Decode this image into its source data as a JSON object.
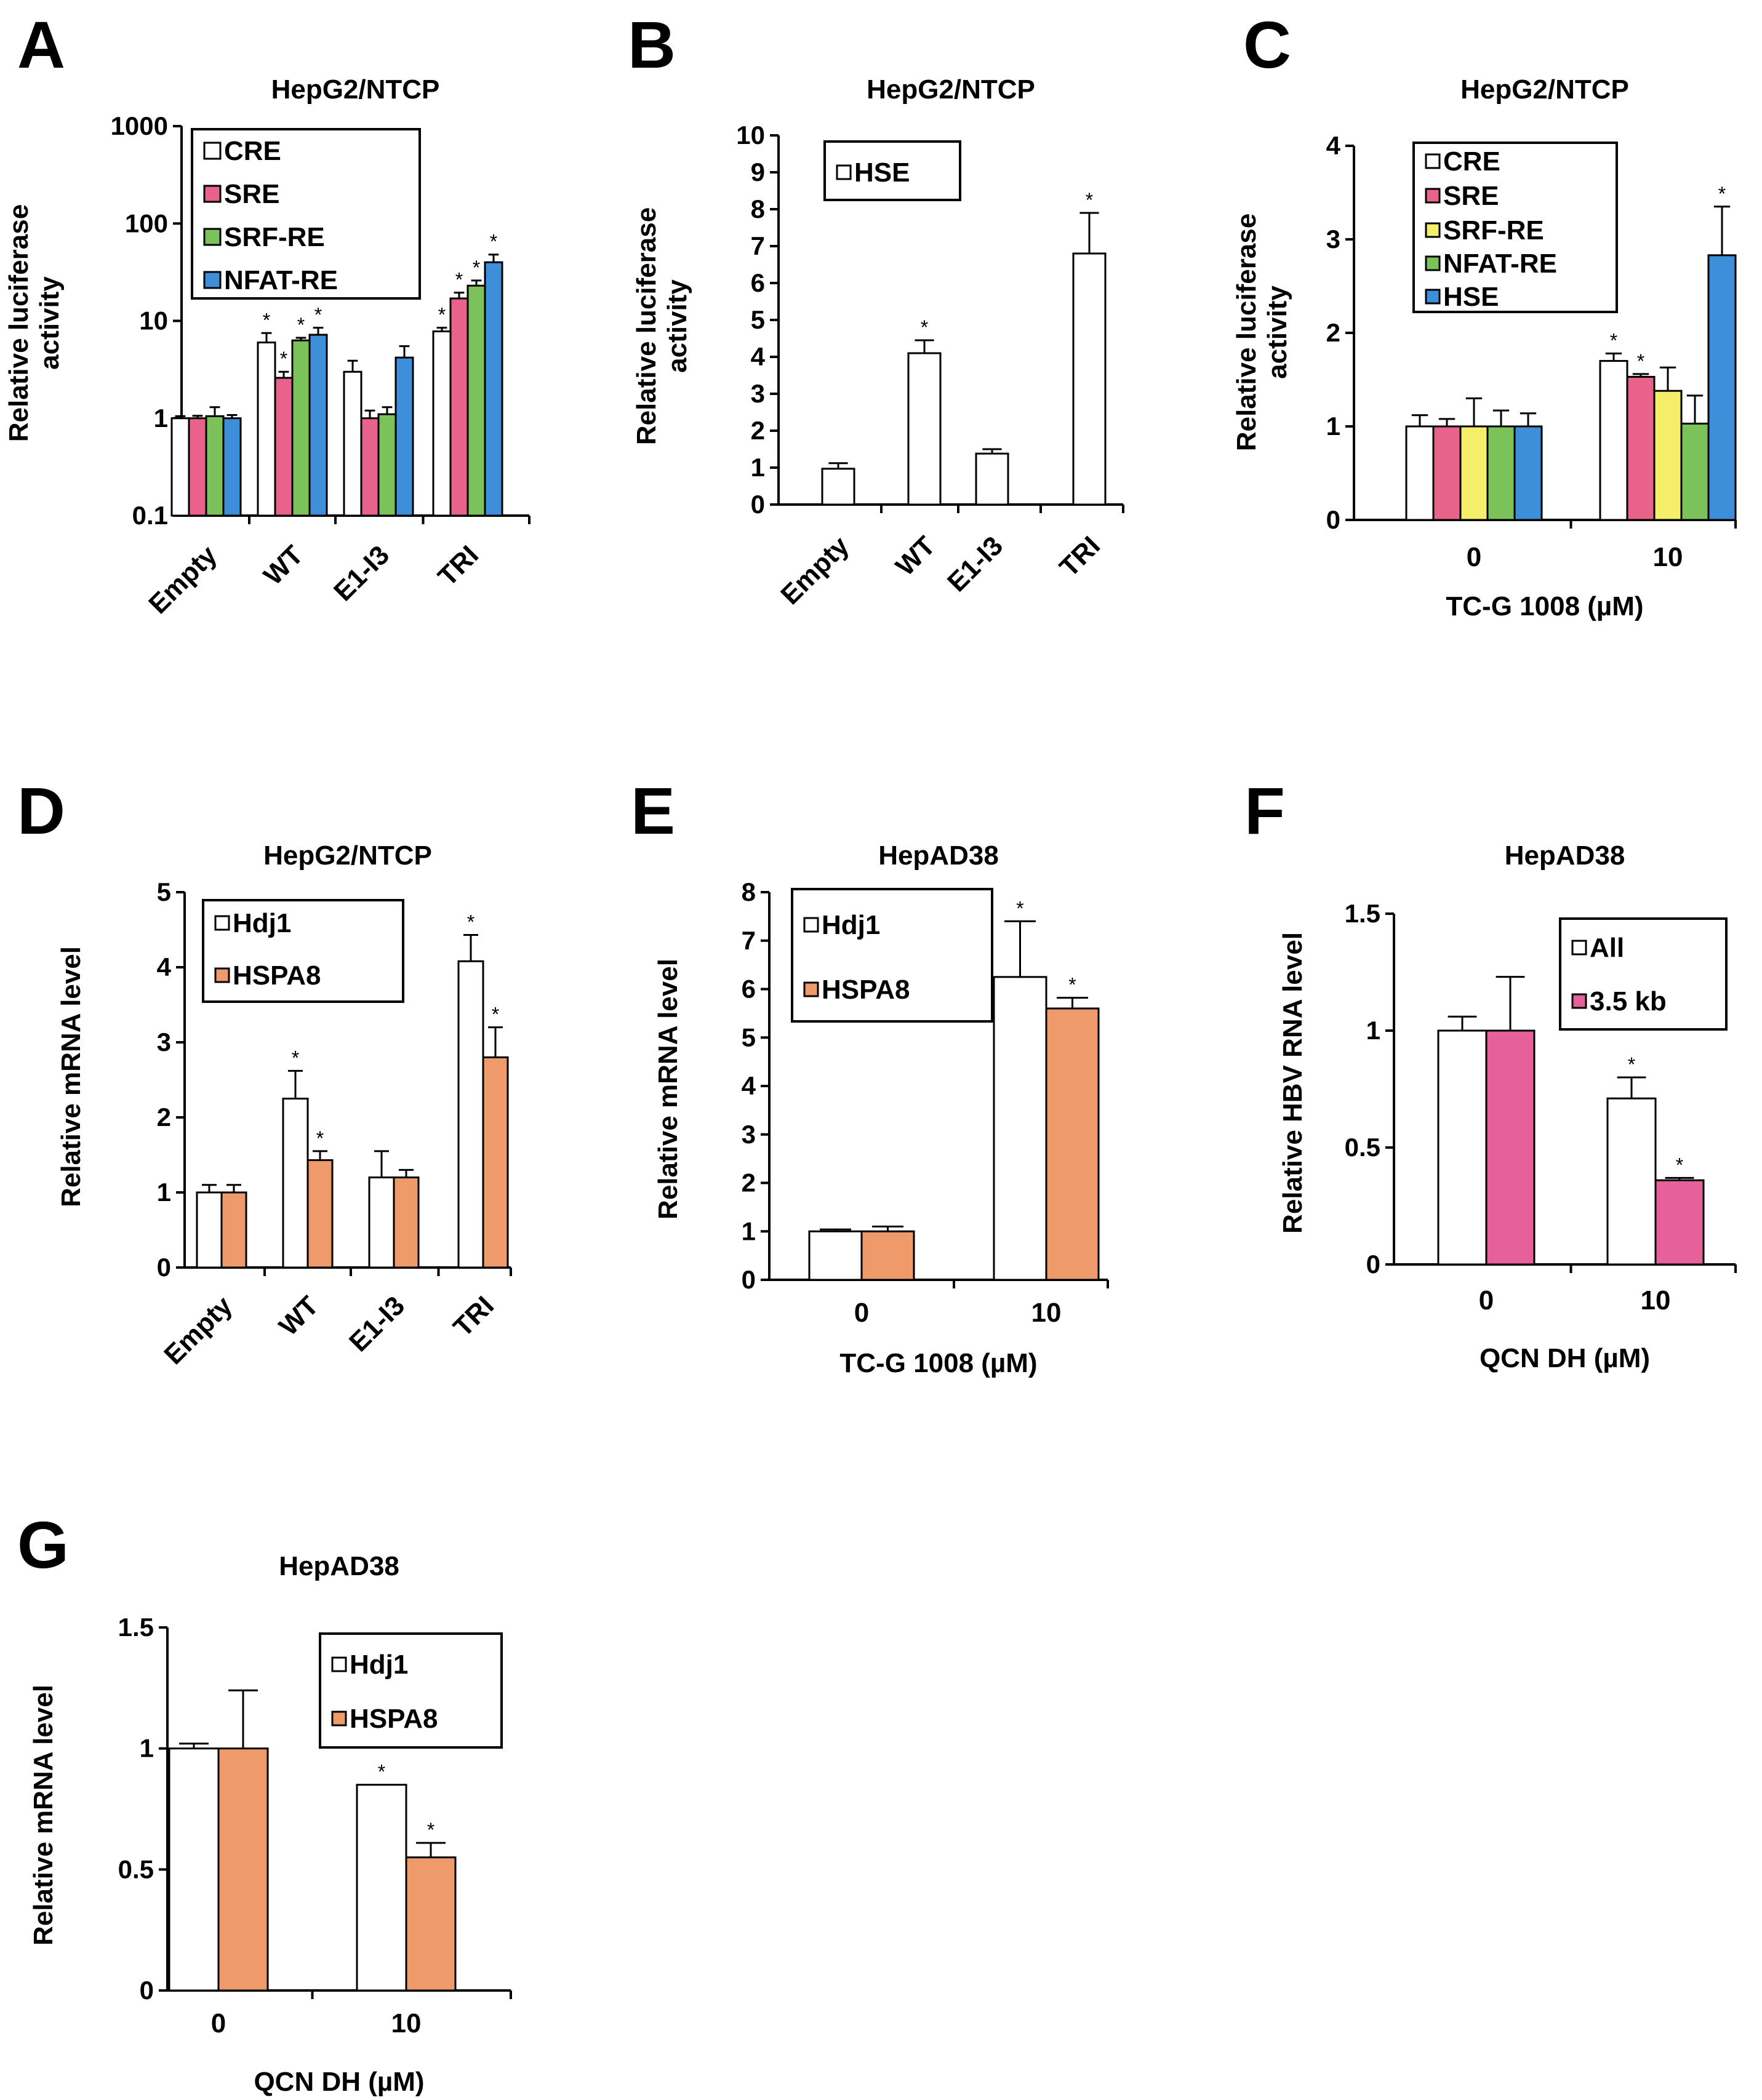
{
  "colors": {
    "white": "#ffffff",
    "pink": "#e8628c",
    "green": "#7bc25a",
    "blue": "#3c8fd8",
    "yellow": "#f4ee6a",
    "orange": "#ef9a6a",
    "pink2": "#e6609a"
  },
  "chart_data": [
    {
      "id": "A",
      "panel_label": "A",
      "type": "bar",
      "title": "HepG2/NTCP",
      "ylabel": [
        "Relative luciferase",
        "activity"
      ],
      "xlabel": "",
      "yscale": "log",
      "ylim": [
        0.1,
        1000
      ],
      "ytick_labels": [
        "0.1",
        "1",
        "10",
        "100",
        "1000"
      ],
      "categories": [
        "Empty",
        "WT",
        "E1-I3",
        "TRI"
      ],
      "rotate_x": true,
      "series": [
        {
          "name": "CRE",
          "color": "white",
          "values": [
            1,
            6,
            3,
            7.8
          ],
          "errors": [
            0.05,
            1.5,
            0.9,
            0.7
          ],
          "stars": [
            false,
            true,
            false,
            true
          ]
        },
        {
          "name": "SRE",
          "color": "pink",
          "values": [
            1,
            2.6,
            1,
            17
          ],
          "errors": [
            0.06,
            0.4,
            0.2,
            2.5
          ],
          "stars": [
            false,
            true,
            false,
            true
          ]
        },
        {
          "name": "SRF-RE",
          "color": "green",
          "values": [
            1.05,
            6.3,
            1.1,
            23
          ],
          "errors": [
            0.25,
            0.4,
            0.2,
            3
          ],
          "stars": [
            false,
            true,
            false,
            true
          ]
        },
        {
          "name": "NFAT-RE",
          "color": "blue",
          "values": [
            1,
            7.2,
            4.2,
            40
          ],
          "errors": [
            0.08,
            1.3,
            1.3,
            8
          ],
          "stars": [
            false,
            true,
            false,
            true
          ]
        }
      ]
    },
    {
      "id": "B",
      "panel_label": "B",
      "type": "bar",
      "title": "HepG2/NTCP",
      "ylabel": [
        "Relative luciferase",
        "activity"
      ],
      "xlabel": "",
      "yscale": "linear",
      "ylim": [
        0,
        10
      ],
      "ytick_labels": [
        "0",
        "1",
        "2",
        "3",
        "4",
        "5",
        "6",
        "7",
        "8",
        "9",
        "10"
      ],
      "categories": [
        "Empty",
        "WT",
        "E1-I3",
        "TRI"
      ],
      "rotate_x": true,
      "series": [
        {
          "name": "HSE",
          "color": "white",
          "values": [
            0.97,
            4.1,
            1.38,
            6.8
          ],
          "errors": [
            0.15,
            0.35,
            0.12,
            1.1
          ],
          "stars": [
            false,
            true,
            false,
            true
          ]
        }
      ]
    },
    {
      "id": "C",
      "panel_label": "C",
      "type": "bar",
      "title": "HepG2/NTCP",
      "ylabel": [
        "Relative luciferase",
        "activity"
      ],
      "xlabel": "TC-G 1008 (µM)",
      "yscale": "linear",
      "ylim": [
        0,
        4
      ],
      "ytick_labels": [
        "0",
        "1",
        "2",
        "3",
        "4"
      ],
      "categories": [
        "0",
        "10"
      ],
      "rotate_x": false,
      "series": [
        {
          "name": "CRE",
          "color": "white",
          "values": [
            1,
            1.7
          ],
          "errors": [
            0.12,
            0.08
          ],
          "stars": [
            false,
            true
          ]
        },
        {
          "name": "SRE",
          "color": "pink",
          "values": [
            1,
            1.53
          ],
          "errors": [
            0.08,
            0.03
          ],
          "stars": [
            false,
            true
          ]
        },
        {
          "name": "SRF-RE",
          "color": "yellow",
          "values": [
            1,
            1.38
          ],
          "errors": [
            0.3,
            0.25
          ],
          "stars": [
            false,
            false
          ]
        },
        {
          "name": "NFAT-RE",
          "color": "green",
          "values": [
            1,
            1.03
          ],
          "errors": [
            0.17,
            0.3
          ],
          "stars": [
            false,
            false
          ]
        },
        {
          "name": "HSE",
          "color": "blue",
          "values": [
            1,
            2.83
          ],
          "errors": [
            0.14,
            0.52
          ],
          "stars": [
            false,
            true
          ]
        }
      ]
    },
    {
      "id": "D",
      "panel_label": "D",
      "type": "bar",
      "title": "HepG2/NTCP",
      "ylabel": [
        "Relative mRNA level"
      ],
      "xlabel": "",
      "yscale": "linear",
      "ylim": [
        0,
        5
      ],
      "ytick_labels": [
        "0",
        "1",
        "2",
        "3",
        "4",
        "5"
      ],
      "categories": [
        "Empty",
        "WT",
        "E1-I3",
        "TRI"
      ],
      "rotate_x": true,
      "series": [
        {
          "name": "Hdj1",
          "color": "white",
          "values": [
            1,
            2.25,
            1.2,
            4.08
          ],
          "errors": [
            0.1,
            0.37,
            0.35,
            0.35
          ],
          "stars": [
            false,
            true,
            false,
            true
          ]
        },
        {
          "name": "HSPA8",
          "color": "orange",
          "values": [
            1,
            1.43,
            1.2,
            2.8
          ],
          "errors": [
            0.1,
            0.12,
            0.1,
            0.4
          ],
          "stars": [
            false,
            true,
            false,
            true
          ]
        }
      ]
    },
    {
      "id": "E",
      "panel_label": "E",
      "type": "bar",
      "title": "HepAD38",
      "ylabel": [
        "Relative mRNA level"
      ],
      "xlabel": "TC-G 1008 (µM)",
      "yscale": "linear",
      "ylim": [
        0,
        8
      ],
      "ytick_labels": [
        "0",
        "1",
        "2",
        "3",
        "4",
        "5",
        "6",
        "7",
        "8"
      ],
      "categories": [
        "0",
        "10"
      ],
      "rotate_x": false,
      "series": [
        {
          "name": "Hdj1",
          "color": "white",
          "values": [
            1,
            6.25
          ],
          "errors": [
            0.04,
            1.15
          ],
          "stars": [
            false,
            true
          ]
        },
        {
          "name": "HSPA8",
          "color": "orange",
          "values": [
            1,
            5.6
          ],
          "errors": [
            0.1,
            0.22
          ],
          "stars": [
            false,
            true
          ]
        }
      ]
    },
    {
      "id": "F",
      "panel_label": "F",
      "type": "bar",
      "title": "HepAD38",
      "ylabel": [
        "Relative HBV RNA level"
      ],
      "xlabel": "QCN DH (µM)",
      "yscale": "linear",
      "ylim": [
        0,
        1.5
      ],
      "ytick_labels": [
        "0",
        "0.5",
        "1",
        "1.5"
      ],
      "categories": [
        "0",
        "10"
      ],
      "rotate_x": false,
      "series": [
        {
          "name": "All",
          "color": "white",
          "values": [
            1,
            0.71
          ],
          "errors": [
            0.06,
            0.09
          ],
          "stars": [
            false,
            true
          ]
        },
        {
          "name": "3.5 kb",
          "color": "pink2",
          "values": [
            1,
            0.36
          ],
          "errors": [
            0.23,
            0.01
          ],
          "stars": [
            false,
            true
          ]
        }
      ]
    },
    {
      "id": "G",
      "panel_label": "G",
      "type": "bar",
      "title": "HepAD38",
      "ylabel": [
        "Relative mRNA level"
      ],
      "xlabel": "QCN DH (µM)",
      "yscale": "linear",
      "ylim": [
        0,
        1.5
      ],
      "ytick_labels": [
        "0",
        "0.5",
        "1",
        "1.5"
      ],
      "categories": [
        "0",
        "10"
      ],
      "rotate_x": false,
      "series": [
        {
          "name": "Hdj1",
          "color": "white",
          "values": [
            1,
            0.85
          ],
          "errors": [
            0.02,
            0
          ],
          "stars": [
            false,
            true
          ]
        },
        {
          "name": "HSPA8",
          "color": "orange",
          "values": [
            1,
            0.55
          ],
          "errors": [
            0.24,
            0.06
          ],
          "stars": [
            false,
            true
          ]
        }
      ]
    }
  ]
}
